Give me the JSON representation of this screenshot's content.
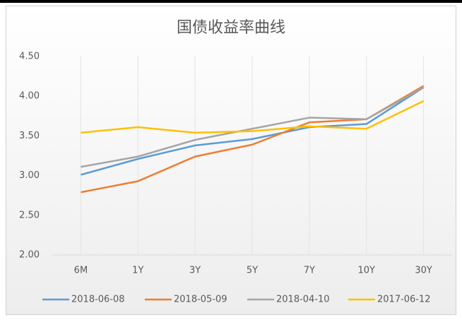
{
  "chart_data": {
    "type": "line",
    "title": "国债收益率曲线",
    "categories": [
      "6M",
      "1Y",
      "3Y",
      "5Y",
      "7Y",
      "10Y",
      "30Y"
    ],
    "series": [
      {
        "name": "2018-06-08",
        "color": "#5b9bd5",
        "values": [
          3.01,
          3.21,
          3.38,
          3.46,
          3.61,
          3.65,
          4.11
        ]
      },
      {
        "name": "2018-05-09",
        "color": "#ed7d31",
        "values": [
          2.79,
          2.93,
          3.24,
          3.39,
          3.67,
          3.71,
          4.13
        ]
      },
      {
        "name": "2018-04-10",
        "color": "#a5a5a5",
        "values": [
          3.11,
          3.24,
          3.45,
          3.59,
          3.73,
          3.71,
          4.11
        ]
      },
      {
        "name": "2017-06-12",
        "color": "#ffc000",
        "values": [
          3.54,
          3.61,
          3.54,
          3.56,
          3.62,
          3.59,
          3.94
        ]
      }
    ],
    "ylim": [
      2,
      4.5
    ],
    "yticks": [
      {
        "value": 2,
        "label": "2.00"
      },
      {
        "value": 2.5,
        "label": "2.50"
      },
      {
        "value": 3,
        "label": "3.00"
      },
      {
        "value": 3.5,
        "label": "3.50"
      },
      {
        "value": 4,
        "label": "4.00"
      },
      {
        "value": 4.5,
        "label": "4.50"
      }
    ],
    "grid": true,
    "legend": "bottom"
  }
}
